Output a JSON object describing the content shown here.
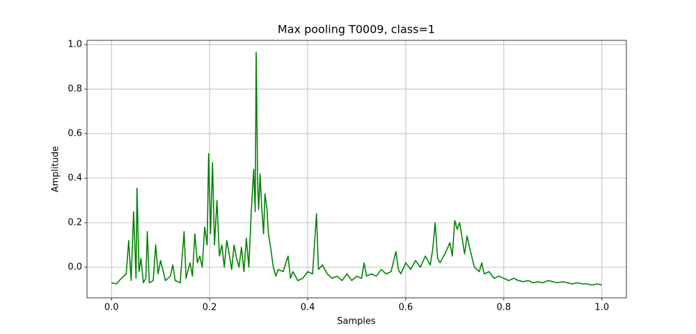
{
  "chart_data": {
    "type": "line",
    "title": "Max pooling T0009, class=1",
    "xlabel": "Samples",
    "ylabel": "Amplitude",
    "x": [
      0.0,
      0.01,
      0.02,
      0.03,
      0.035,
      0.04,
      0.045,
      0.05,
      0.052,
      0.056,
      0.06,
      0.065,
      0.07,
      0.073,
      0.077,
      0.085,
      0.09,
      0.095,
      0.1,
      0.11,
      0.12,
      0.125,
      0.13,
      0.14,
      0.148,
      0.152,
      0.16,
      0.165,
      0.17,
      0.175,
      0.18,
      0.185,
      0.19,
      0.195,
      0.198,
      0.202,
      0.206,
      0.21,
      0.215,
      0.22,
      0.225,
      0.23,
      0.235,
      0.24,
      0.245,
      0.25,
      0.255,
      0.26,
      0.265,
      0.27,
      0.275,
      0.28,
      0.285,
      0.29,
      0.293,
      0.295,
      0.298,
      0.3,
      0.303,
      0.306,
      0.31,
      0.313,
      0.317,
      0.32,
      0.325,
      0.33,
      0.335,
      0.34,
      0.35,
      0.36,
      0.365,
      0.37,
      0.38,
      0.39,
      0.4,
      0.41,
      0.418,
      0.422,
      0.43,
      0.44,
      0.45,
      0.46,
      0.47,
      0.48,
      0.49,
      0.5,
      0.51,
      0.515,
      0.52,
      0.53,
      0.54,
      0.55,
      0.56,
      0.57,
      0.58,
      0.585,
      0.59,
      0.6,
      0.61,
      0.62,
      0.63,
      0.64,
      0.65,
      0.655,
      0.66,
      0.665,
      0.67,
      0.68,
      0.69,
      0.695,
      0.7,
      0.705,
      0.71,
      0.715,
      0.72,
      0.725,
      0.73,
      0.74,
      0.75,
      0.755,
      0.76,
      0.77,
      0.78,
      0.79,
      0.8,
      0.81,
      0.82,
      0.83,
      0.84,
      0.85,
      0.86,
      0.87,
      0.88,
      0.89,
      0.9,
      0.91,
      0.92,
      0.93,
      0.94,
      0.95,
      0.96,
      0.97,
      0.98,
      0.99,
      1.0
    ],
    "values": [
      -0.07,
      -0.075,
      -0.05,
      -0.03,
      0.12,
      -0.06,
      0.25,
      -0.05,
      0.355,
      -0.02,
      0.04,
      -0.07,
      -0.05,
      0.16,
      -0.07,
      -0.06,
      0.1,
      -0.03,
      0.03,
      -0.06,
      -0.04,
      0.01,
      -0.06,
      -0.07,
      0.16,
      -0.05,
      0.02,
      -0.04,
      0.15,
      0.02,
      0.05,
      0.0,
      0.18,
      0.1,
      0.51,
      0.15,
      0.47,
      0.1,
      0.3,
      0.05,
      0.1,
      0.0,
      0.12,
      0.06,
      -0.01,
      0.1,
      0.04,
      0.0,
      0.09,
      -0.02,
      0.13,
      0.0,
      0.25,
      0.44,
      0.25,
      0.965,
      0.38,
      0.26,
      0.42,
      0.28,
      0.15,
      0.33,
      0.26,
      0.15,
      0.08,
      0.0,
      -0.04,
      -0.01,
      -0.02,
      0.05,
      -0.05,
      -0.02,
      -0.06,
      -0.05,
      -0.02,
      -0.03,
      0.24,
      -0.01,
      0.01,
      -0.03,
      -0.05,
      -0.04,
      -0.06,
      -0.03,
      -0.06,
      -0.04,
      -0.05,
      0.02,
      -0.04,
      -0.03,
      -0.04,
      -0.01,
      -0.03,
      -0.02,
      0.07,
      -0.01,
      -0.03,
      0.02,
      -0.01,
      0.03,
      0.0,
      0.05,
      0.01,
      0.08,
      0.2,
      0.04,
      0.02,
      0.06,
      0.11,
      0.05,
      0.21,
      0.17,
      0.2,
      0.13,
      0.06,
      0.14,
      0.09,
      0.0,
      -0.02,
      0.02,
      -0.03,
      -0.02,
      -0.05,
      -0.04,
      -0.05,
      -0.06,
      -0.05,
      -0.06,
      -0.065,
      -0.06,
      -0.07,
      -0.065,
      -0.07,
      -0.06,
      -0.065,
      -0.07,
      -0.065,
      -0.07,
      -0.075,
      -0.07,
      -0.075,
      -0.075,
      -0.08,
      -0.075,
      -0.08
    ],
    "color": "#008000",
    "xlim": [
      -0.05,
      1.05
    ],
    "ylim": [
      -0.1375,
      1.019
    ],
    "xticks": [
      {
        "value": 0,
        "label": "0.0"
      },
      0.2,
      0.4,
      0.6,
      0.8,
      {
        "value": 1,
        "label": "1.0"
      }
    ],
    "yticks": [
      {
        "value": 0,
        "label": "0.0"
      },
      0.2,
      0.4,
      0.6,
      0.8,
      {
        "value": 1,
        "label": "1.0"
      }
    ],
    "grid": true
  }
}
